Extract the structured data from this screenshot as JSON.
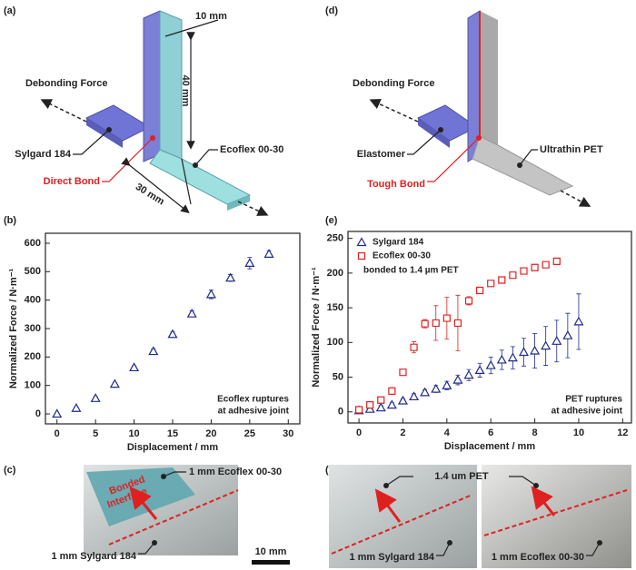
{
  "panel_labels": [
    "(a)",
    "(b)",
    "(c)",
    "(d)",
    "(e)",
    "(f)"
  ],
  "diagram_a": {
    "dimensions": [
      "10 mm",
      "40 mm",
      "30 mm"
    ],
    "force": "Debonding Force",
    "layer_1": "Sylgard 184",
    "layer_2": "Ecoflex 00-30",
    "bond": "Direct Bond"
  },
  "diagram_d": {
    "force": "Debonding Force",
    "layer_1": "Elastomer",
    "layer_2": "Ultrathin PET",
    "bond": "Tough Bond"
  },
  "photo_c": {
    "interface": [
      "Bonded",
      "Interface"
    ],
    "top": "1 mm Ecoflex 00-30",
    "bottom": "1 mm Sylgard 184",
    "scale_bar": "10 mm"
  },
  "photo_f": {
    "film": "1.4 um PET",
    "left": "1 mm Sylgard 184",
    "right": "1 mm Ecoflex 00-30"
  },
  "chart_data": [
    {
      "type": "scatter",
      "x_label": "Displacement / mm",
      "y_label": "Normalized Force / N·m⁻¹",
      "annotations": [
        "Ecoflex ruptures",
        "at adhesive joint"
      ],
      "xlim": [
        -1.5,
        31.5
      ],
      "xticks": [
        0,
        5,
        10,
        15,
        20,
        25,
        30
      ],
      "ylim": [
        -35,
        635
      ],
      "yticks": [
        0,
        100,
        200,
        300,
        400,
        500,
        600
      ],
      "series": [
        {
          "color": "#1f2a8c",
          "marker": "triangle",
          "x": [
            0,
            2.5,
            5,
            7.5,
            10,
            12.5,
            15,
            17.5,
            20,
            22.5,
            25,
            27.5
          ],
          "values": [
            0,
            20,
            55,
            105,
            163,
            220,
            280,
            352,
            420,
            478,
            530,
            562
          ],
          "errors": [
            3,
            4,
            5,
            5,
            6,
            8,
            8,
            10,
            15,
            12,
            20,
            12
          ]
        }
      ]
    },
    {
      "type": "scatter",
      "x_label": "Displacement / mm",
      "y_label": "Normalized Force / N·m⁻¹",
      "annotations": [
        "bonded to 1.4 µm PET",
        "PET ruptures",
        "at adhesive joint"
      ],
      "legend": "upper left",
      "xlim": [
        -0.5,
        12.4
      ],
      "xticks": [
        0,
        2,
        4,
        6,
        8,
        10,
        12
      ],
      "ylim": [
        -16,
        260
      ],
      "yticks": [
        0,
        50,
        100,
        150,
        200,
        250
      ],
      "series": [
        {
          "name": "Sylgard 184",
          "color": "#1f2a8c",
          "marker": "triangle",
          "x": [
            0,
            0.5,
            1,
            1.5,
            2,
            2.5,
            3,
            3.5,
            4,
            4.5,
            5,
            5.5,
            6,
            6.5,
            7,
            7.5,
            8,
            8.5,
            9,
            9.5,
            10
          ],
          "values": [
            2,
            4,
            6,
            10,
            16,
            22,
            28,
            33,
            38,
            46,
            53,
            60,
            67,
            75,
            78,
            86,
            88,
            95,
            102,
            110,
            130
          ],
          "errors": [
            2,
            2,
            3,
            3,
            3,
            4,
            4,
            5,
            6,
            7,
            8,
            10,
            12,
            14,
            16,
            20,
            25,
            28,
            30,
            32,
            40
          ]
        },
        {
          "name": "Ecoflex 00-30",
          "color": "#e02020",
          "marker": "square",
          "x": [
            0,
            0.5,
            1,
            1.5,
            2,
            2.5,
            3,
            3.5,
            4,
            4.5,
            5,
            5.5,
            6,
            6.5,
            7,
            7.5,
            8,
            8.5,
            9
          ],
          "values": [
            3,
            10,
            17,
            30,
            57,
            93,
            127,
            128,
            135,
            128,
            160,
            175,
            185,
            190,
            197,
            203,
            208,
            212,
            217
          ],
          "errors": [
            2,
            3,
            3,
            5,
            4,
            8,
            6,
            25,
            30,
            40,
            6,
            3,
            3,
            3,
            3,
            3,
            3,
            3,
            3
          ]
        }
      ]
    }
  ]
}
